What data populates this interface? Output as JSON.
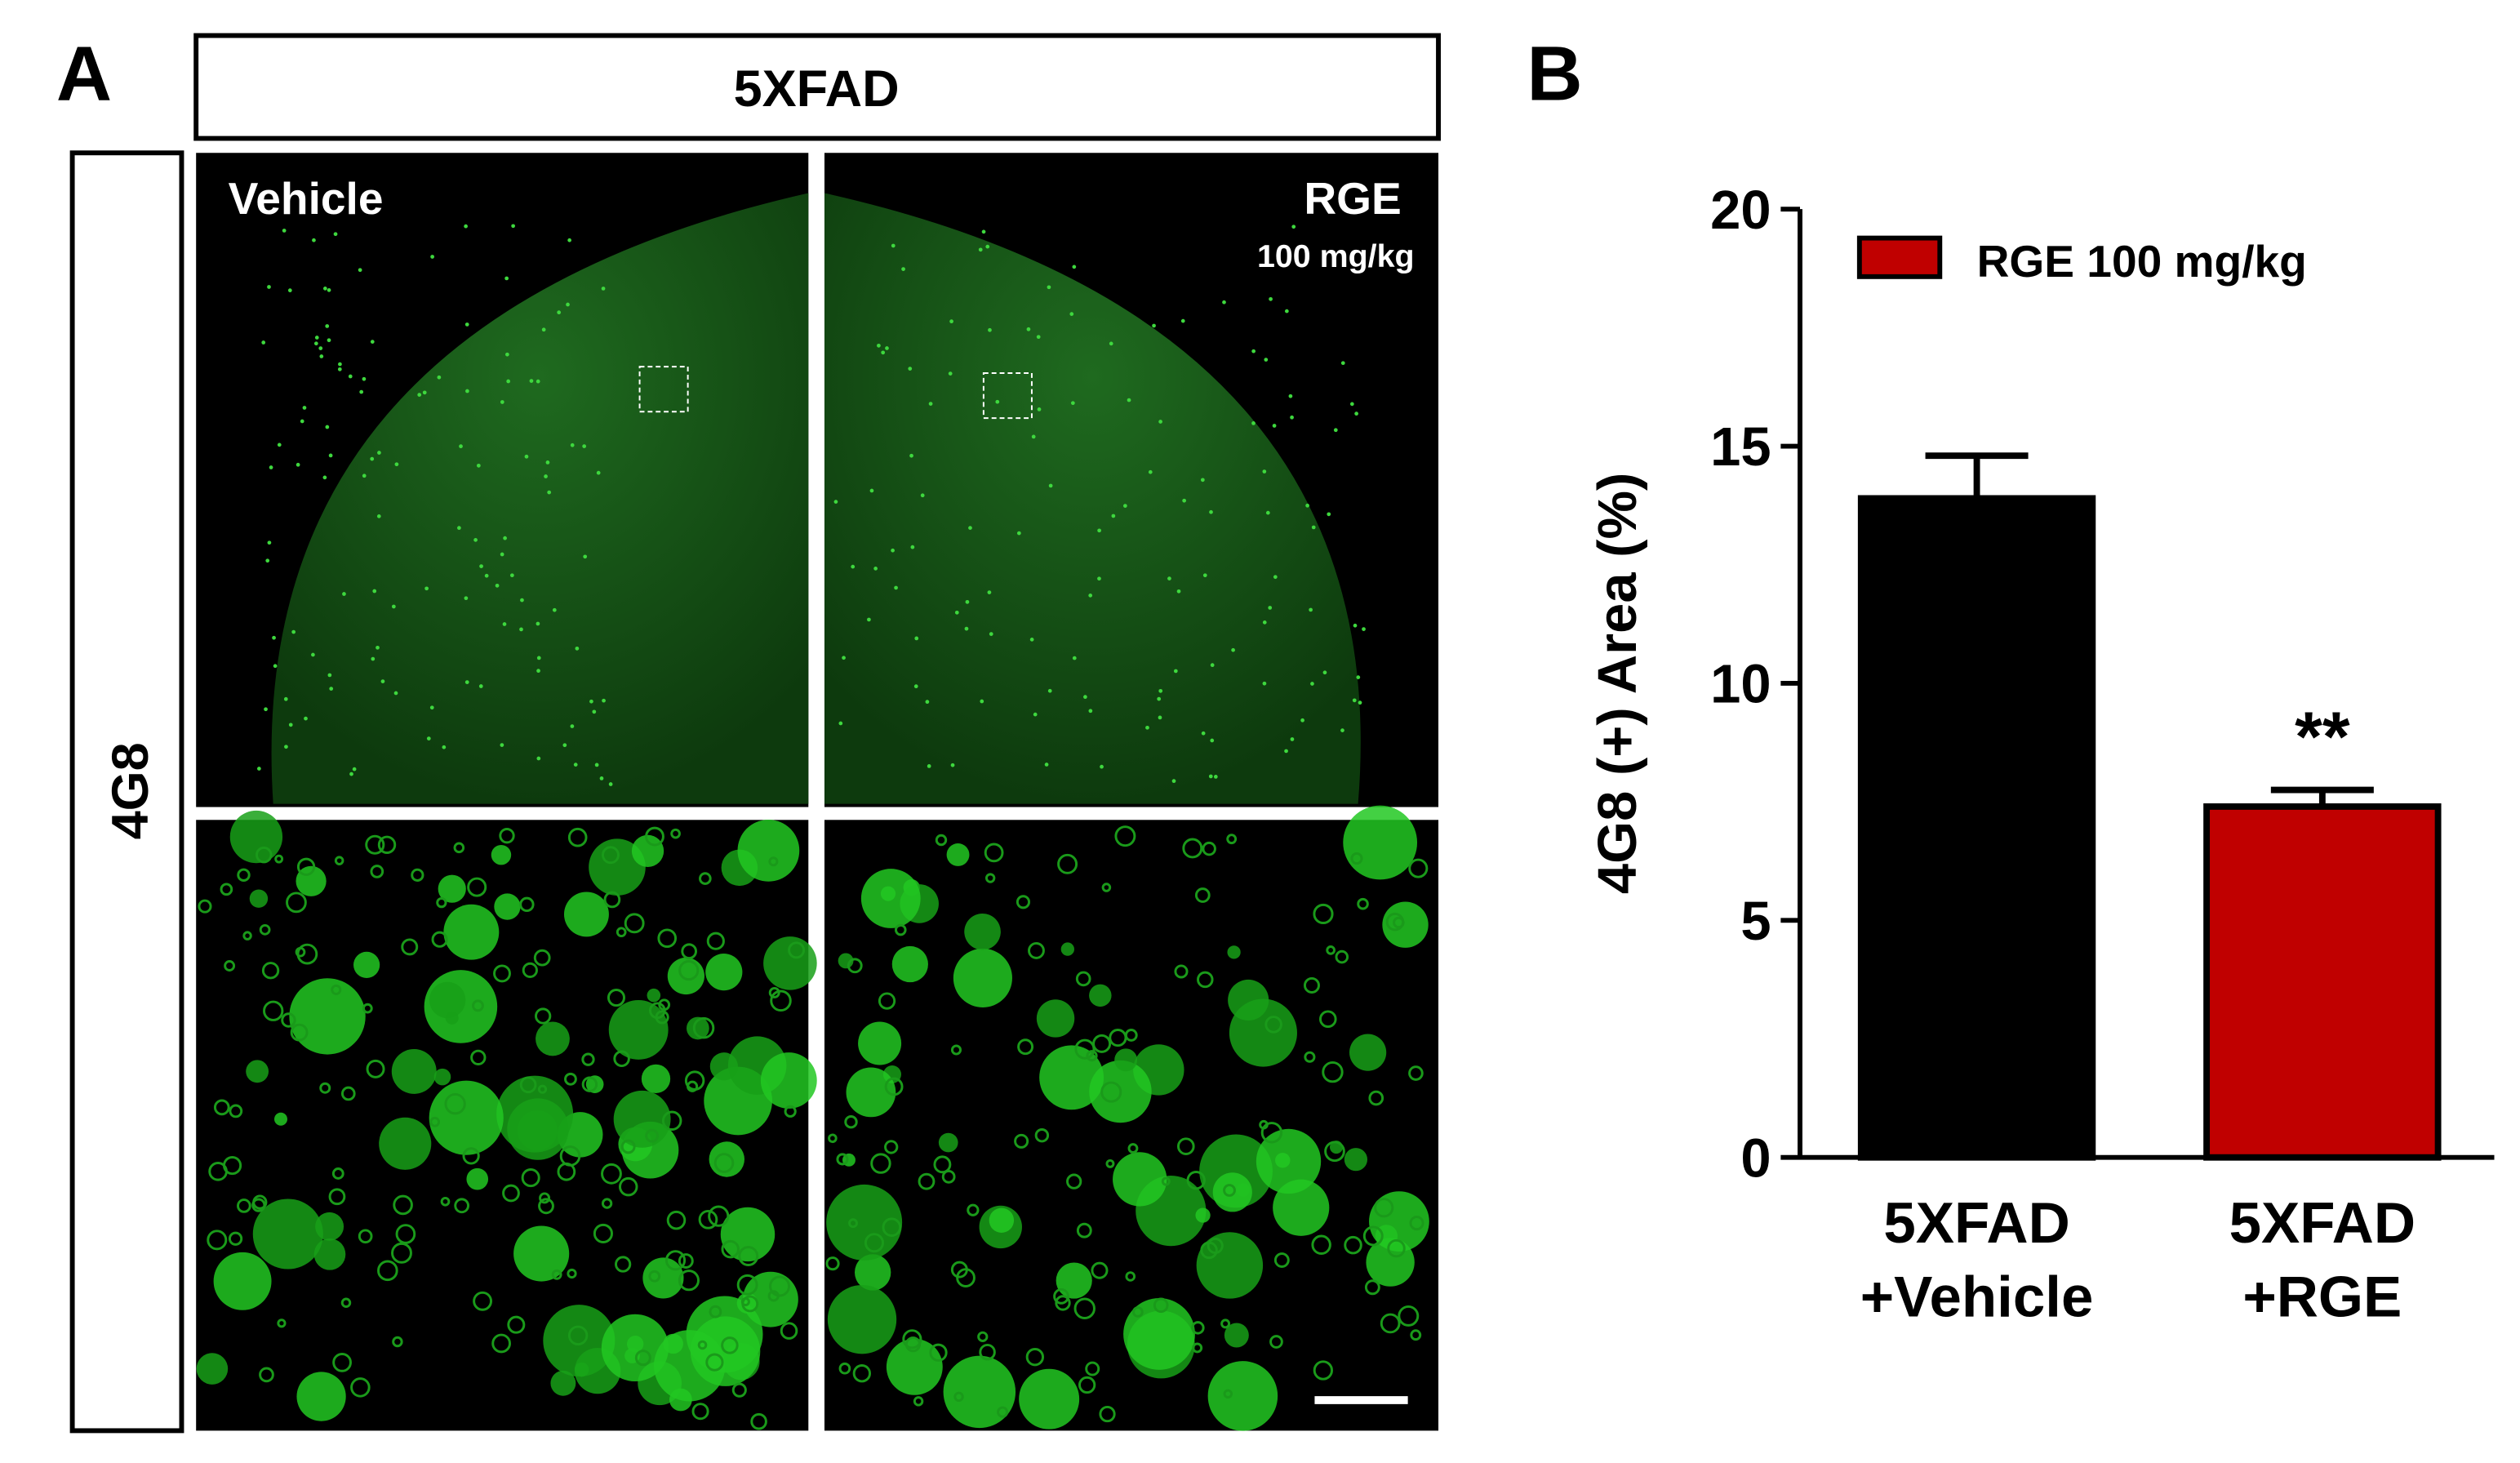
{
  "panel_a": {
    "label": "A",
    "group": "5XFAD",
    "stain": "4G8",
    "left_condition": "Vehicle",
    "right_condition": "RGE",
    "right_dose": "100 mg/kg"
  },
  "chart_data": {
    "type": "bar",
    "panel_label": "B",
    "y_label": "4G8 (+) Area (%)",
    "categories": [
      "5XFAD\n+Vehicle",
      "5XFAD\n+RGE"
    ],
    "values": [
      13.9,
      7.4
    ],
    "errors": [
      0.9,
      0.35
    ],
    "colors": [
      "#000000",
      "#c00000"
    ],
    "legend": {
      "label": "RGE 100 mg/kg",
      "color": "#c00000",
      "position": "upper left"
    },
    "annotations": [
      {
        "text": "**",
        "category": 1
      }
    ],
    "ylim": [
      0,
      20
    ],
    "yticks": [
      0,
      5,
      10,
      15,
      20
    ],
    "grid": false
  }
}
